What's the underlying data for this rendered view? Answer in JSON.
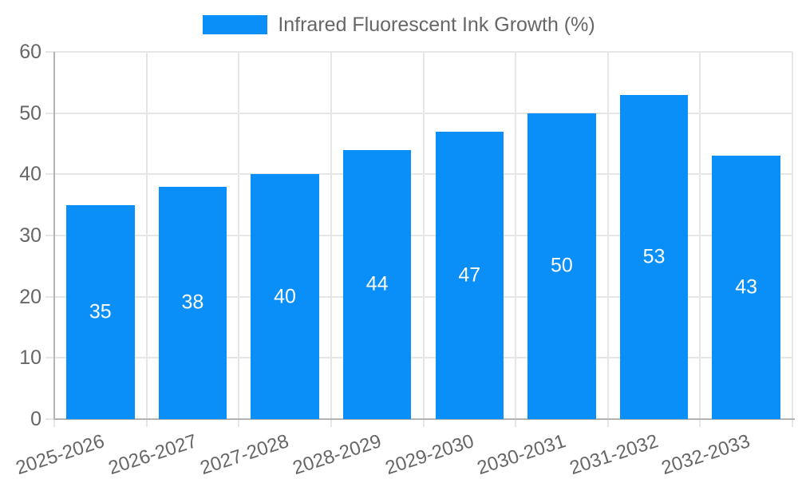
{
  "chart_data": {
    "type": "bar",
    "title": "",
    "legend_label": "Infrared Fluorescent Ink Growth (%)",
    "legend_position": "top",
    "categories": [
      "2025-2026",
      "2026-2027",
      "2027-2028",
      "2028-2029",
      "2029-2030",
      "2030-2031",
      "2031-2032",
      "2032-2033"
    ],
    "series": [
      {
        "name": "Infrared Fluorescent Ink Growth (%)",
        "values": [
          35,
          38,
          40,
          44,
          47,
          50,
          53,
          43
        ]
      }
    ],
    "datalabels_shown_inside_bars": [
      35,
      38,
      40,
      44,
      47,
      50,
      53,
      43
    ],
    "xlabel": "",
    "ylabel": "",
    "ylim": [
      0,
      60
    ],
    "yticks": [
      0,
      10,
      20,
      30,
      40,
      50,
      60
    ],
    "grid": true,
    "x_label_rotation_deg": -18,
    "colors": {
      "bar": "#0a8ff8",
      "grid": "#e6e6e6",
      "axis": "#b3b3b3",
      "tick_text": "#666666",
      "datalabel": "#ffffff",
      "background": "#ffffff"
    }
  }
}
